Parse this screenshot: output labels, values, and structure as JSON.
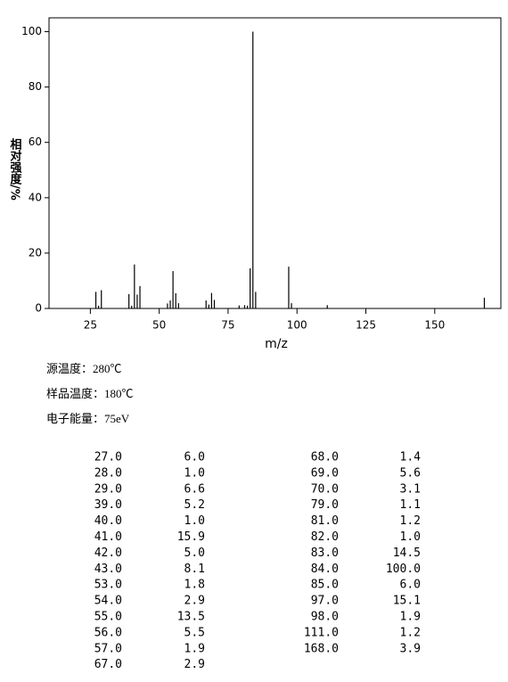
{
  "chart_data": {
    "type": "bar",
    "xlabel": "m/z",
    "ylabel": "相对强度/%",
    "x": [
      27,
      28,
      29,
      39,
      40,
      41,
      42,
      43,
      53,
      54,
      55,
      56,
      57,
      67,
      68,
      69,
      70,
      79,
      81,
      82,
      83,
      84,
      85,
      97,
      98,
      111,
      168
    ],
    "values": [
      6.0,
      1.0,
      6.6,
      5.2,
      1.0,
      15.9,
      5.0,
      8.1,
      1.8,
      2.9,
      13.5,
      5.5,
      1.9,
      2.9,
      1.4,
      5.6,
      3.1,
      1.1,
      1.2,
      1.0,
      14.5,
      100,
      6.0,
      15.1,
      1.9,
      1.2,
      3.9
    ],
    "color": "#000000",
    "xlim": [
      10,
      174
    ],
    "xticks": [
      25,
      50,
      75,
      100,
      125,
      150
    ],
    "ylim": [
      0,
      105
    ],
    "yticks": [
      0,
      20,
      40,
      60,
      80,
      100
    ]
  },
  "info": [
    "源温度：280℃",
    "样品温度：180℃",
    "电子能量：75eV"
  ],
  "table": {
    "left": [
      [
        "27.0",
        "6.0"
      ],
      [
        "28.0",
        "1.0"
      ],
      [
        "29.0",
        "6.6"
      ],
      [
        "39.0",
        "5.2"
      ],
      [
        "40.0",
        "1.0"
      ],
      [
        "41.0",
        "15.9"
      ],
      [
        "42.0",
        "5.0"
      ],
      [
        "43.0",
        "8.1"
      ],
      [
        "53.0",
        "1.8"
      ],
      [
        "54.0",
        "2.9"
      ],
      [
        "55.0",
        "13.5"
      ],
      [
        "56.0",
        "5.5"
      ],
      [
        "57.0",
        "1.9"
      ],
      [
        "67.0",
        "2.9"
      ]
    ],
    "right": [
      [
        "68.0",
        "1.4"
      ],
      [
        "69.0",
        "5.6"
      ],
      [
        "70.0",
        "3.1"
      ],
      [
        "79.0",
        "1.1"
      ],
      [
        "81.0",
        "1.2"
      ],
      [
        "82.0",
        "1.0"
      ],
      [
        "83.0",
        "14.5"
      ],
      [
        "84.0",
        "100.0"
      ],
      [
        "85.0",
        "6.0"
      ],
      [
        "97.0",
        "15.1"
      ],
      [
        "98.0",
        "1.9"
      ],
      [
        "111.0",
        "1.2"
      ],
      [
        "168.0",
        "3.9"
      ]
    ]
  }
}
